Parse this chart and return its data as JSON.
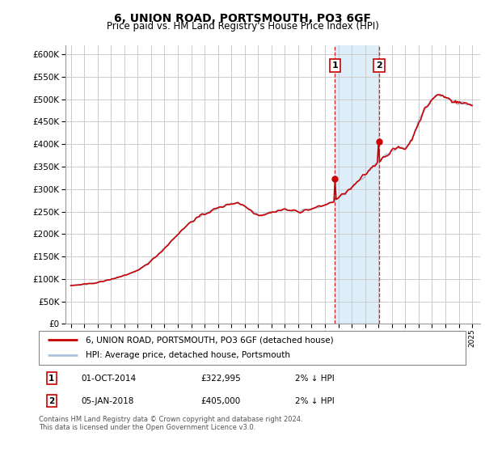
{
  "title": "6, UNION ROAD, PORTSMOUTH, PO3 6GF",
  "subtitle": "Price paid vs. HM Land Registry's House Price Index (HPI)",
  "legend_line1": "6, UNION ROAD, PORTSMOUTH, PO3 6GF (detached house)",
  "legend_line2": "HPI: Average price, detached house, Portsmouth",
  "annotation1_date": "01-OCT-2014",
  "annotation1_price": "£322,995",
  "annotation1_hpi": "2% ↓ HPI",
  "annotation2_date": "05-JAN-2018",
  "annotation2_price": "£405,000",
  "annotation2_hpi": "2% ↓ HPI",
  "footer": "Contains HM Land Registry data © Crown copyright and database right 2024.\nThis data is licensed under the Open Government Licence v3.0.",
  "ylim": [
    0,
    620000
  ],
  "yticks": [
    0,
    50000,
    100000,
    150000,
    200000,
    250000,
    300000,
    350000,
    400000,
    450000,
    500000,
    550000,
    600000
  ],
  "hpi_color": "#aac4dd",
  "property_color": "#cc0000",
  "shaded_region_color": "#ddeef8",
  "background_color": "#ffffff",
  "grid_color": "#cccccc",
  "sale1_year": 2014.75,
  "sale2_year": 2018.04,
  "sale1_price": 322995,
  "sale2_price": 405000,
  "start_year": 1995,
  "end_year": 2025
}
